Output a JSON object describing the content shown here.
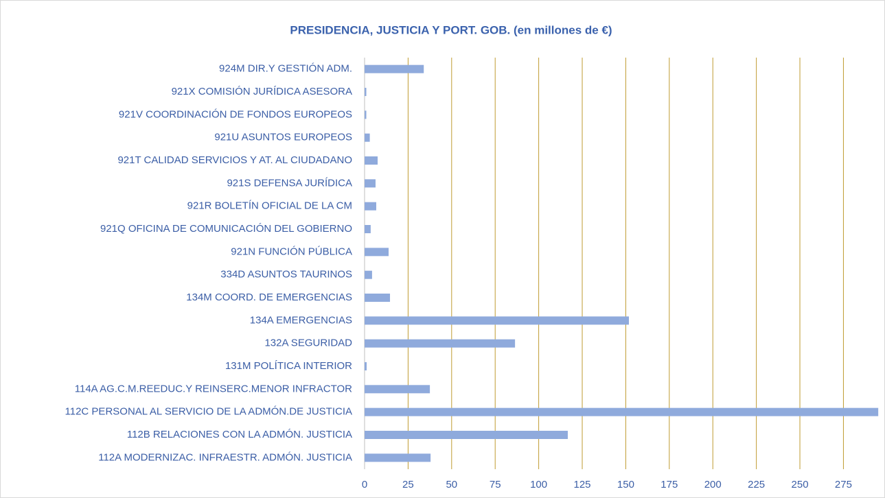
{
  "chart_data": {
    "type": "bar",
    "orientation": "horizontal",
    "title": "PRESIDENCIA, JUSTICIA Y PORT. GOB. (en millones de €)",
    "categories": [
      "924M DIR.Y GESTIÓN ADM.",
      "921X COMISIÓN JURÍDICA ASESORA",
      "921V COORDINACIÓN DE FONDOS EUROPEOS",
      "921U ASUNTOS EUROPEOS",
      "921T CALIDAD SERVICIOS Y AT. AL CIUDADANO",
      "921S DEFENSA JURÍDICA",
      "921R BOLETÍN OFICIAL DE LA CM",
      "921Q OFICINA DE COMUNICACIÓN DEL GOBIERNO",
      "921N FUNCIÓN PÚBLICA",
      "334D ASUNTOS TAURINOS",
      "134M COORD. DE EMERGENCIAS",
      "134A EMERGENCIAS",
      "132A SEGURIDAD",
      "131M POLÍTICA INTERIOR",
      "114A AG.C.M.REEDUC.Y REINSERC.MENOR INFRACTOR",
      "112C PERSONAL AL SERVICIO DE LA ADMÓN.DE JUSTICIA",
      "112B RELACIONES CON LA ADMÓN.  JUSTICIA",
      "112A MODERNIZAC. INFRAESTR. ADMÓN. JUSTICIA"
    ],
    "values": [
      34,
      1,
      1,
      3,
      7.5,
      6.3,
      6.7,
      3.5,
      13.8,
      4.3,
      14.6,
      151.8,
      86.4,
      1.2,
      37.5,
      295,
      116.7,
      37.9
    ],
    "color": "#8faadc",
    "grid": true,
    "grid_color": "#bf9b30",
    "xlim": [
      0,
      296
    ],
    "xticks": [
      0,
      25,
      50,
      75,
      100,
      125,
      150,
      175,
      200,
      225,
      250,
      275
    ]
  }
}
